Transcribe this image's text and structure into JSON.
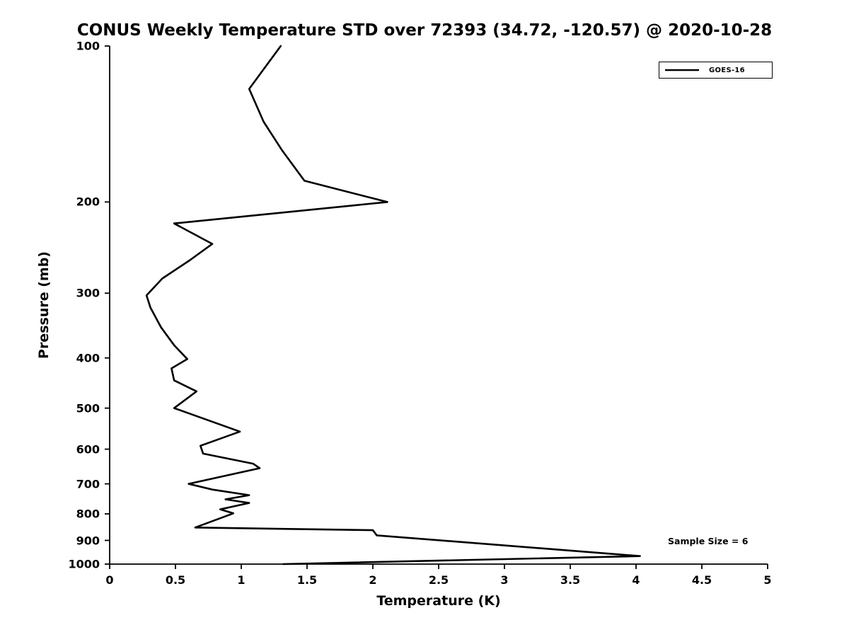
{
  "title": "CONUS Weekly Temperature STD over 72393 (34.72, -120.57) @ 2020-10-28",
  "colors": {
    "line": "#000000",
    "axis": "#000000",
    "text": "#000000",
    "background": "#ffffff"
  },
  "chart_data": {
    "type": "line",
    "title": "CONUS Weekly Temperature STD over 72393 (34.72, -120.57) @ 2020-10-28",
    "xlabel": "Temperature (K)",
    "ylabel": "Pressure (mb)",
    "xlim": [
      0,
      5
    ],
    "ylim": [
      100,
      1000
    ],
    "x_scale": "linear",
    "y_scale": "log",
    "y_direction": "reversed",
    "grid": false,
    "legend_position": "top-right",
    "annotation": "Sample Size = 6",
    "x_ticks": [
      0,
      0.5,
      1,
      1.5,
      2,
      2.5,
      3,
      3.5,
      4,
      4.5,
      5
    ],
    "x_tick_labels": [
      "0",
      "0.5",
      "1",
      "1.5",
      "2",
      "2.5",
      "3",
      "3.5",
      "4",
      "4.5",
      "5"
    ],
    "y_ticks": [
      100,
      200,
      300,
      400,
      500,
      600,
      700,
      800,
      900,
      1000
    ],
    "y_tick_labels": [
      "100",
      "200",
      "300",
      "400",
      "500",
      "600",
      "700",
      "800",
      "900",
      "1000"
    ],
    "series": [
      {
        "name": "GOES-16",
        "color": "#000000",
        "pressure_mb": [
          100,
          121,
          140,
          159,
          182,
          200,
          220,
          241,
          259,
          281,
          303,
          320,
          349,
          378,
          402,
          419,
          442,
          464,
          500,
          555,
          591,
          612,
          640,
          653,
          700,
          718,
          736,
          750,
          762,
          784,
          798,
          850,
          860,
          880,
          965,
          1000
        ],
        "std_K": [
          1.3,
          1.06,
          1.17,
          1.31,
          1.48,
          2.11,
          0.49,
          0.78,
          0.61,
          0.4,
          0.28,
          0.31,
          0.39,
          0.49,
          0.59,
          0.47,
          0.49,
          0.66,
          0.49,
          0.99,
          0.69,
          0.71,
          1.09,
          1.14,
          0.6,
          0.78,
          1.06,
          0.88,
          1.06,
          0.84,
          0.94,
          0.65,
          2.0,
          2.03,
          4.03,
          1.32
        ]
      }
    ]
  }
}
